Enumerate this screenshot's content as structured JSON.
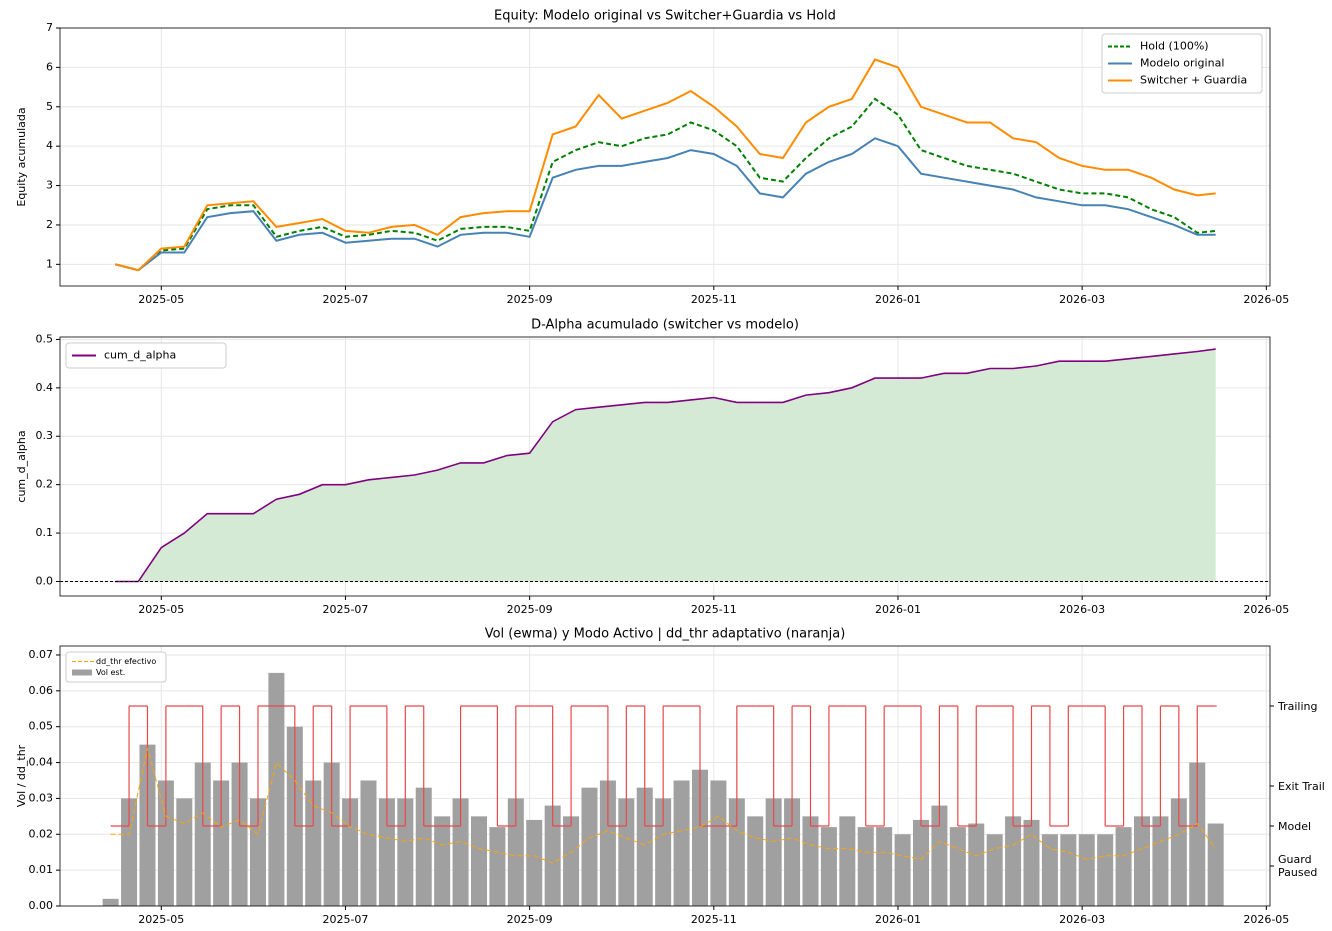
{
  "chart_data": [
    {
      "type": "line",
      "title": "Equity: Modelo original vs Switcher+Guardia vs Hold",
      "ylabel": "Equity acumulada",
      "x": [
        4.5,
        4.75,
        5,
        5.25,
        5.5,
        5.75,
        6,
        6.25,
        6.5,
        6.75,
        7,
        7.25,
        7.5,
        7.75,
        8,
        8.25,
        8.5,
        8.75,
        9,
        9.25,
        9.5,
        9.75,
        10,
        10.25,
        10.5,
        10.75,
        11,
        11.25,
        11.5,
        11.75,
        12,
        12.25,
        12.5,
        12.75,
        13,
        13.25,
        13.5,
        13.75,
        14,
        14.25,
        14.5,
        14.75,
        15,
        15.25,
        15.5,
        15.75,
        16,
        16.25,
        16.45
      ],
      "series": [
        {
          "name": "Hold (100%)",
          "color": "#008000",
          "dash": true,
          "values": [
            1.0,
            0.85,
            1.35,
            1.4,
            2.4,
            2.5,
            2.5,
            1.7,
            1.85,
            1.95,
            1.7,
            1.75,
            1.85,
            1.8,
            1.6,
            1.9,
            1.95,
            1.95,
            1.85,
            3.6,
            3.9,
            4.1,
            4.0,
            4.2,
            4.3,
            4.6,
            4.4,
            4.0,
            3.2,
            3.1,
            3.7,
            4.2,
            4.5,
            5.2,
            4.8,
            3.9,
            3.7,
            3.5,
            3.4,
            3.3,
            3.1,
            2.9,
            2.8,
            2.8,
            2.7,
            2.4,
            2.2,
            1.8,
            1.85
          ]
        },
        {
          "name": "Modelo original",
          "color": "#4682b4",
          "values": [
            1.0,
            0.85,
            1.3,
            1.3,
            2.2,
            2.3,
            2.35,
            1.6,
            1.75,
            1.8,
            1.55,
            1.6,
            1.65,
            1.65,
            1.45,
            1.75,
            1.8,
            1.8,
            1.7,
            3.2,
            3.4,
            3.5,
            3.5,
            3.6,
            3.7,
            3.9,
            3.8,
            3.5,
            2.8,
            2.7,
            3.3,
            3.6,
            3.8,
            4.2,
            4.0,
            3.3,
            3.2,
            3.1,
            3.0,
            2.9,
            2.7,
            2.6,
            2.5,
            2.5,
            2.4,
            2.2,
            2.0,
            1.75,
            1.75
          ]
        },
        {
          "name": "Switcher + Guardia",
          "color": "#ff8c00",
          "values": [
            1.0,
            0.85,
            1.4,
            1.45,
            2.5,
            2.55,
            2.6,
            1.95,
            2.05,
            2.15,
            1.85,
            1.8,
            1.95,
            2.0,
            1.75,
            2.2,
            2.3,
            2.35,
            2.35,
            4.3,
            4.5,
            5.3,
            4.7,
            4.9,
            5.1,
            5.4,
            5.0,
            4.5,
            3.8,
            3.7,
            4.6,
            5.0,
            5.2,
            6.2,
            6.0,
            5.0,
            4.8,
            4.6,
            4.6,
            4.2,
            4.1,
            3.7,
            3.5,
            3.4,
            3.4,
            3.2,
            2.9,
            2.75,
            2.8
          ]
        }
      ],
      "xlim": [
        3.9,
        17.04
      ],
      "xticks": [
        {
          "value": 5,
          "label": "2025-05"
        },
        {
          "value": 7,
          "label": "2025-07"
        },
        {
          "value": 9,
          "label": "2025-09"
        },
        {
          "value": 11,
          "label": "2025-11"
        },
        {
          "value": 13,
          "label": "2026-01"
        },
        {
          "value": 15,
          "label": "2026-03"
        },
        {
          "value": 17,
          "label": "2026-05"
        }
      ],
      "ylim": [
        0.45,
        7
      ],
      "yticks": [
        1,
        2,
        3,
        4,
        5,
        6,
        7
      ],
      "grid": true,
      "legend": "upper right"
    },
    {
      "type": "area",
      "title": "D-Alpha acumulado (switcher vs modelo)",
      "ylabel": "cum_d_alpha",
      "x": [
        4.5,
        4.75,
        5,
        5.25,
        5.5,
        5.75,
        6,
        6.25,
        6.5,
        6.75,
        7,
        7.25,
        7.5,
        7.75,
        8,
        8.25,
        8.5,
        8.75,
        9,
        9.25,
        9.5,
        9.75,
        10,
        10.25,
        10.5,
        10.75,
        11,
        11.25,
        11.5,
        11.75,
        12,
        12.25,
        12.5,
        12.75,
        13,
        13.25,
        13.5,
        13.75,
        14,
        14.25,
        14.5,
        14.75,
        15,
        15.25,
        15.5,
        15.75,
        16,
        16.25,
        16.45
      ],
      "series": [
        {
          "name": "cum_d_alpha",
          "color": "#800080",
          "fill": "#d5ead5",
          "values": [
            0,
            0,
            0.07,
            0.1,
            0.14,
            0.14,
            0.14,
            0.17,
            0.18,
            0.2,
            0.2,
            0.21,
            0.215,
            0.22,
            0.23,
            0.245,
            0.245,
            0.26,
            0.265,
            0.33,
            0.355,
            0.36,
            0.365,
            0.37,
            0.37,
            0.375,
            0.38,
            0.37,
            0.37,
            0.37,
            0.385,
            0.39,
            0.4,
            0.42,
            0.42,
            0.42,
            0.43,
            0.43,
            0.44,
            0.44,
            0.445,
            0.455,
            0.455,
            0.455,
            0.46,
            0.465,
            0.47,
            0.475,
            0.48
          ]
        }
      ],
      "xlim": [
        3.9,
        17.04
      ],
      "xticks": [
        {
          "value": 5,
          "label": "2025-05"
        },
        {
          "value": 7,
          "label": "2025-07"
        },
        {
          "value": 9,
          "label": "2025-09"
        },
        {
          "value": 11,
          "label": "2025-11"
        },
        {
          "value": 13,
          "label": "2026-01"
        },
        {
          "value": 15,
          "label": "2026-03"
        },
        {
          "value": 17,
          "label": "2026-05"
        }
      ],
      "ylim": [
        -0.03,
        0.505
      ],
      "yticks": [
        {
          "value": 0,
          "label": "0.0"
        },
        {
          "value": 0.1,
          "label": "0.1"
        },
        {
          "value": 0.2,
          "label": "0.2"
        },
        {
          "value": 0.3,
          "label": "0.3"
        },
        {
          "value": 0.4,
          "label": "0.4"
        },
        {
          "value": 0.5,
          "label": "0.5"
        }
      ],
      "grid": true,
      "zero_line": true,
      "legend": "upper left"
    },
    {
      "type": "bar",
      "title": "Vol (ewma) y Modo Activo | dd_thr adaptativo (naranja)",
      "ylabel": "Vol / dd_thr",
      "x": [
        4.45,
        4.65,
        4.85,
        5.05,
        5.25,
        5.45,
        5.65,
        5.85,
        6.05,
        6.25,
        6.45,
        6.65,
        6.85,
        7.05,
        7.25,
        7.45,
        7.65,
        7.85,
        8.05,
        8.25,
        8.45,
        8.65,
        8.85,
        9.05,
        9.25,
        9.45,
        9.65,
        9.85,
        10.05,
        10.25,
        10.45,
        10.65,
        10.85,
        11.05,
        11.25,
        11.45,
        11.65,
        11.85,
        12.05,
        12.25,
        12.45,
        12.65,
        12.85,
        13.05,
        13.25,
        13.45,
        13.65,
        13.85,
        14.05,
        14.25,
        14.45,
        14.65,
        14.85,
        15.05,
        15.25,
        15.45,
        15.65,
        15.85,
        16.05,
        16.25,
        16.45
      ],
      "series": [
        {
          "name": "dd_thr efectivo",
          "type": "line",
          "color": "#ffa500",
          "dash": true,
          "values": [
            0.02,
            0.02,
            0.044,
            0.025,
            0.023,
            0.026,
            0.022,
            0.024,
            0.02,
            0.04,
            0.035,
            0.028,
            0.026,
            0.022,
            0.02,
            0.019,
            0.018,
            0.019,
            0.017,
            0.018,
            0.016,
            0.015,
            0.014,
            0.014,
            0.012,
            0.015,
            0.019,
            0.021,
            0.019,
            0.017,
            0.02,
            0.021,
            0.022,
            0.025,
            0.021,
            0.019,
            0.018,
            0.019,
            0.017,
            0.016,
            0.016,
            0.015,
            0.015,
            0.014,
            0.013,
            0.018,
            0.016,
            0.014,
            0.016,
            0.017,
            0.02,
            0.016,
            0.015,
            0.013,
            0.014,
            0.014,
            0.016,
            0.018,
            0.02,
            0.023,
            0.016
          ]
        },
        {
          "name": "Vol est.",
          "type": "bar",
          "color": "#a0a0a0",
          "values": [
            0.002,
            0.03,
            0.045,
            0.035,
            0.03,
            0.04,
            0.035,
            0.04,
            0.03,
            0.065,
            0.05,
            0.035,
            0.04,
            0.03,
            0.035,
            0.03,
            0.03,
            0.033,
            0.025,
            0.03,
            0.025,
            0.022,
            0.03,
            0.024,
            0.028,
            0.025,
            0.033,
            0.035,
            0.03,
            0.033,
            0.03,
            0.035,
            0.038,
            0.035,
            0.03,
            0.025,
            0.03,
            0.03,
            0.025,
            0.022,
            0.025,
            0.022,
            0.022,
            0.02,
            0.024,
            0.028,
            0.022,
            0.023,
            0.02,
            0.025,
            0.024,
            0.02,
            0.02,
            0.02,
            0.02,
            0.022,
            0.025,
            0.025,
            0.03,
            0.04,
            0.023
          ]
        },
        {
          "type": "step",
          "axis": "y2",
          "color": "#e8484a",
          "values": [
            1,
            4,
            1,
            4,
            4,
            1,
            4,
            1,
            4,
            4,
            1,
            4,
            1,
            4,
            4,
            1,
            4,
            1,
            1,
            4,
            4,
            1,
            4,
            4,
            1,
            4,
            4,
            1,
            4,
            1,
            4,
            4,
            1,
            1,
            4,
            4,
            1,
            4,
            1,
            4,
            4,
            1,
            4,
            4,
            1,
            4,
            1,
            4,
            4,
            1,
            4,
            1,
            4,
            4,
            1,
            4,
            1,
            4,
            1,
            4,
            4
          ]
        }
      ],
      "xlim": [
        3.9,
        17.04
      ],
      "xticks": [
        {
          "value": 5,
          "label": "2025-05"
        },
        {
          "value": 7,
          "label": "2025-07"
        },
        {
          "value": 9,
          "label": "2025-09"
        },
        {
          "value": 11,
          "label": "2025-11"
        },
        {
          "value": 13,
          "label": "2026-01"
        },
        {
          "value": 15,
          "label": "2026-03"
        },
        {
          "value": 17,
          "label": "2026-05"
        }
      ],
      "ylim": [
        0,
        0.0725
      ],
      "yticks": [
        {
          "value": 0,
          "label": "0.00"
        },
        {
          "value": 0.01,
          "label": "0.01"
        },
        {
          "value": 0.02,
          "label": "0.02"
        },
        {
          "value": 0.03,
          "label": "0.03"
        },
        {
          "value": 0.04,
          "label": "0.04"
        },
        {
          "value": 0.05,
          "label": "0.05"
        },
        {
          "value": 0.06,
          "label": "0.06"
        },
        {
          "value": 0.07,
          "label": "0.07"
        }
      ],
      "y2lim": [
        -1,
        5.5
      ],
      "y2ticks": [
        {
          "value": 0,
          "label": "Guard Paused"
        },
        {
          "value": 1,
          "label": "Model"
        },
        {
          "value": 2,
          "label": "Exit Trail"
        },
        {
          "value": 4,
          "label": "Trailing"
        }
      ],
      "grid": true,
      "legend": "upper left"
    }
  ]
}
